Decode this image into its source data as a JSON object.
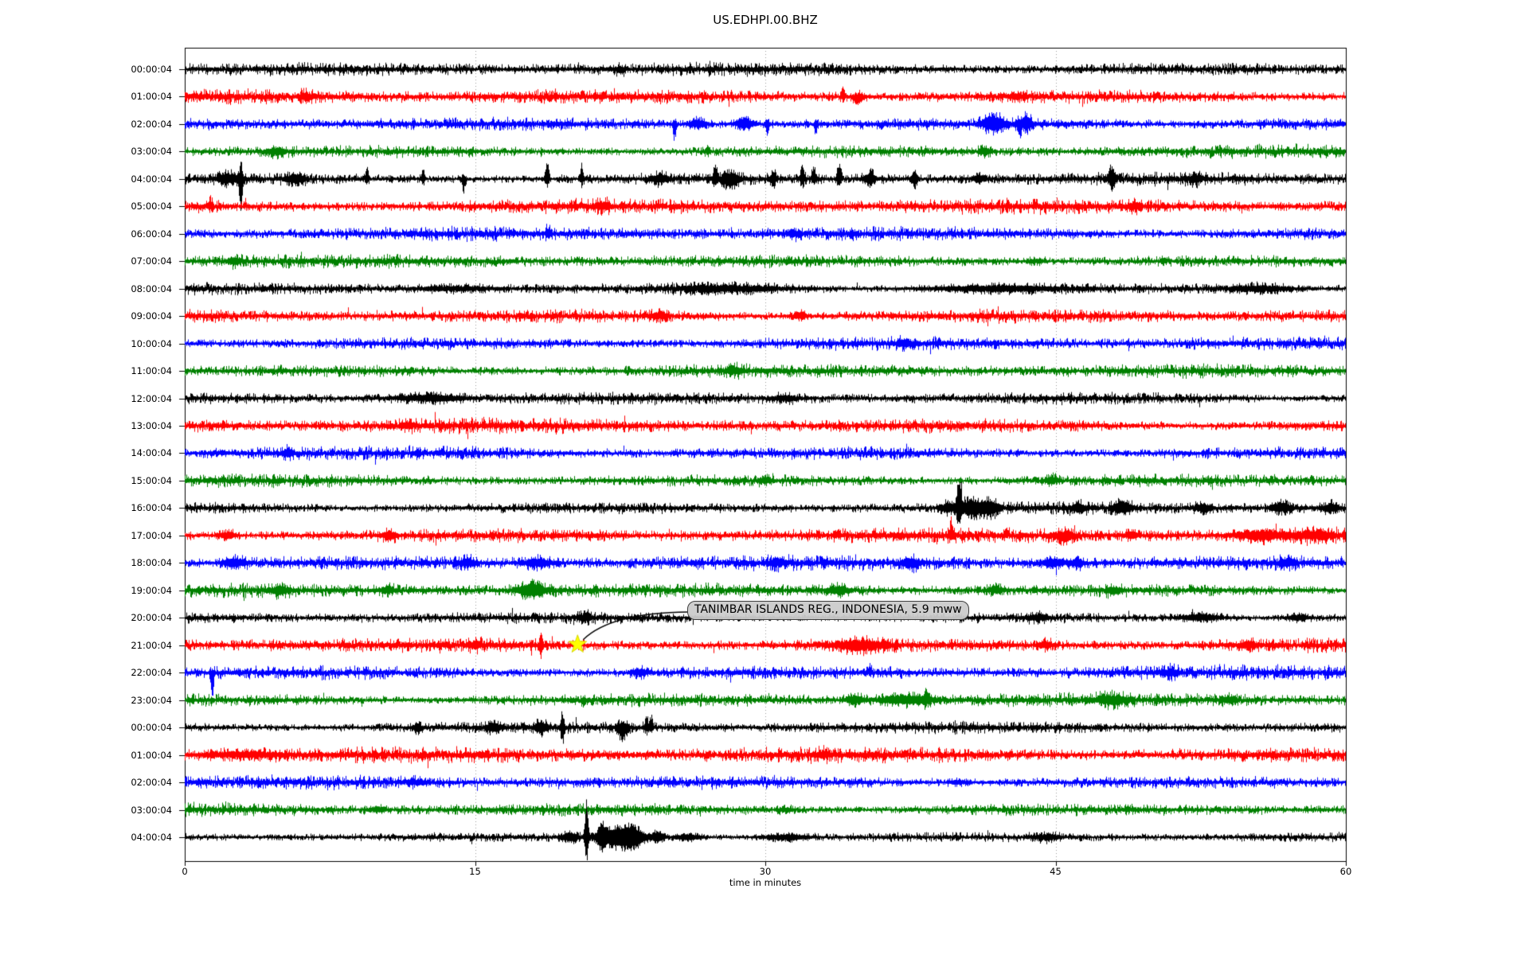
{
  "page": {
    "background": "#ffffff"
  },
  "chart_data": {
    "type": "line",
    "variant": "seismogram_day_plot",
    "title": "US.EDHPI.00.BHZ",
    "xlabel": "time in minutes",
    "xlim": [
      0,
      60
    ],
    "xticks": [
      "0",
      "15",
      "30",
      "45",
      "60"
    ],
    "grid_minutes": [
      15,
      30,
      45
    ],
    "grid_style": "dotted",
    "grid_color": "#999999",
    "axis_color": "#000000",
    "legend": "none",
    "trace_color_cycle": [
      "#000000",
      "#ff0000",
      "#0000ff",
      "#008000"
    ],
    "event_format": [
      "center_minute",
      "half_width_minutes",
      "peak_up_px",
      "peak_down_px"
    ],
    "rows": [
      {
        "label": "00:00:04",
        "color": "#000000",
        "noise": 1.05,
        "events": [
          [
            22.5,
            0.2,
            2,
            3
          ],
          [
            27.1,
            0.06,
            2,
            7
          ]
        ]
      },
      {
        "label": "01:00:04",
        "color": "#ff0000",
        "noise": 1.18,
        "events": [
          [
            6.3,
            0.25,
            3,
            3
          ],
          [
            34.0,
            0.07,
            13,
            4
          ],
          [
            34.8,
            0.22,
            3,
            7
          ],
          [
            43.0,
            0.3,
            3,
            2
          ]
        ]
      },
      {
        "label": "02:00:04",
        "color": "#0000ff",
        "noise": 1.1,
        "events": [
          [
            25.3,
            0.06,
            4,
            17
          ],
          [
            26.5,
            0.3,
            5,
            4
          ],
          [
            28.9,
            0.3,
            8,
            5
          ],
          [
            30.1,
            0.07,
            3,
            10
          ],
          [
            32.6,
            0.07,
            3,
            8
          ],
          [
            41.8,
            0.4,
            9,
            7
          ],
          [
            43.1,
            0.08,
            4,
            13
          ],
          [
            43.5,
            0.2,
            9,
            6
          ]
        ]
      },
      {
        "label": "03:00:04",
        "color": "#008000",
        "noise": 1.05,
        "events": [
          [
            4.7,
            0.3,
            4,
            4
          ],
          [
            27.0,
            0.08,
            6,
            3
          ],
          [
            41.3,
            0.2,
            4,
            3
          ]
        ]
      },
      {
        "label": "04:00:04",
        "color": "#000000",
        "noise": 1.0,
        "events": [
          [
            2.3,
            0.4,
            6,
            5
          ],
          [
            2.9,
            0.07,
            14,
            32
          ],
          [
            5.7,
            0.35,
            5,
            5
          ],
          [
            9.4,
            0.06,
            16,
            5
          ],
          [
            12.3,
            0.07,
            11,
            5
          ],
          [
            14.4,
            0.07,
            4,
            13
          ],
          [
            18.7,
            0.08,
            20,
            8
          ],
          [
            20.5,
            0.07,
            15,
            6
          ],
          [
            24.5,
            0.3,
            4,
            4
          ],
          [
            27.4,
            0.08,
            18,
            7
          ],
          [
            28.2,
            0.3,
            6,
            9
          ],
          [
            30.4,
            0.1,
            8,
            6
          ],
          [
            31.9,
            0.08,
            15,
            6
          ],
          [
            32.5,
            0.08,
            12,
            6
          ],
          [
            33.8,
            0.08,
            19,
            8
          ],
          [
            35.4,
            0.2,
            7,
            5
          ],
          [
            37.7,
            0.08,
            10,
            12
          ],
          [
            41.0,
            0.2,
            5,
            4
          ],
          [
            47.9,
            0.09,
            15,
            14
          ],
          [
            52.2,
            0.3,
            3,
            3
          ]
        ]
      },
      {
        "label": "05:00:04",
        "color": "#ff0000",
        "noise": 1.18,
        "events": [
          [
            1.3,
            0.07,
            8,
            3
          ],
          [
            21.6,
            0.25,
            4,
            3
          ],
          [
            49.0,
            0.2,
            3,
            3
          ]
        ]
      },
      {
        "label": "06:00:04",
        "color": "#0000ff",
        "noise": 1.1,
        "events": [
          [
            18.8,
            0.1,
            6,
            4
          ],
          [
            31.5,
            0.3,
            3,
            3
          ]
        ]
      },
      {
        "label": "07:00:04",
        "color": "#008000",
        "noise": 1.05,
        "events": [
          [
            2.5,
            0.25,
            3,
            3
          ],
          [
            44.0,
            0.3,
            2,
            2
          ]
        ]
      },
      {
        "label": "08:00:04",
        "color": "#000000",
        "noise": 0.9,
        "events": [
          [
            14.0,
            1.5,
            2,
            2
          ],
          [
            28.0,
            2.0,
            3,
            3
          ],
          [
            42.0,
            2.5,
            3,
            3
          ],
          [
            55.5,
            1.2,
            3,
            3
          ]
        ]
      },
      {
        "label": "09:00:04",
        "color": "#ff0000",
        "noise": 1.18,
        "events": [
          [
            24.5,
            0.3,
            4,
            3
          ],
          [
            31.8,
            0.25,
            4,
            3
          ]
        ]
      },
      {
        "label": "10:00:04",
        "color": "#0000ff",
        "noise": 1.08,
        "events": [
          [
            37.2,
            0.3,
            3,
            3
          ]
        ]
      },
      {
        "label": "11:00:04",
        "color": "#008000",
        "noise": 1.05,
        "events": [
          [
            28.3,
            0.3,
            3,
            3
          ]
        ]
      },
      {
        "label": "12:00:04",
        "color": "#000000",
        "noise": 0.95,
        "events": [
          [
            12.6,
            1.2,
            4,
            3
          ],
          [
            31.0,
            0.4,
            3,
            3
          ]
        ]
      },
      {
        "label": "13:00:04",
        "color": "#ff0000",
        "noise": 1.18,
        "events": [
          [
            11.5,
            0.25,
            3,
            3
          ]
        ]
      },
      {
        "label": "14:00:04",
        "color": "#0000ff",
        "noise": 1.08,
        "events": [
          [
            5.3,
            0.2,
            4,
            3
          ]
        ]
      },
      {
        "label": "15:00:04",
        "color": "#008000",
        "noise": 1.05,
        "events": [
          [
            30.0,
            0.3,
            2,
            2
          ],
          [
            44.8,
            0.25,
            4,
            3
          ]
        ]
      },
      {
        "label": "16:00:04",
        "color": "#000000",
        "noise": 1.0,
        "events": [
          [
            39.4,
            0.25,
            5,
            4
          ],
          [
            40.0,
            0.09,
            33,
            16
          ],
          [
            40.7,
            0.5,
            9,
            9
          ],
          [
            41.7,
            0.3,
            6,
            6
          ],
          [
            46.2,
            0.25,
            4,
            4
          ],
          [
            48.4,
            0.3,
            7,
            5
          ],
          [
            52.6,
            0.3,
            4,
            4
          ],
          [
            56.7,
            0.4,
            5,
            4
          ],
          [
            59.2,
            0.3,
            5,
            4
          ]
        ]
      },
      {
        "label": "17:00:04",
        "color": "#ff0000",
        "noise": 1.18,
        "events": [
          [
            2.2,
            0.3,
            4,
            3
          ],
          [
            10.5,
            0.25,
            4,
            3
          ],
          [
            39.6,
            0.07,
            15,
            3
          ],
          [
            45.4,
            0.4,
            4,
            6
          ],
          [
            48.9,
            0.25,
            4,
            3
          ],
          [
            55.7,
            0.9,
            5,
            4
          ],
          [
            58.4,
            0.6,
            5,
            4
          ]
        ]
      },
      {
        "label": "18:00:04",
        "color": "#0000ff",
        "noise": 1.15,
        "events": [
          [
            2.6,
            0.4,
            5,
            4
          ],
          [
            14.6,
            0.3,
            4,
            4
          ],
          [
            18.2,
            0.5,
            4,
            4
          ],
          [
            30.6,
            0.25,
            4,
            3
          ],
          [
            37.5,
            0.3,
            5,
            4
          ],
          [
            44.9,
            0.4,
            5,
            4
          ],
          [
            46.1,
            0.25,
            4,
            4
          ],
          [
            57.0,
            0.3,
            4,
            3
          ]
        ]
      },
      {
        "label": "19:00:04",
        "color": "#008000",
        "noise": 1.08,
        "events": [
          [
            4.9,
            0.3,
            4,
            4
          ],
          [
            10.5,
            0.25,
            4,
            3
          ],
          [
            17.9,
            0.5,
            8,
            7
          ],
          [
            33.8,
            0.4,
            4,
            4
          ],
          [
            41.9,
            0.3,
            4,
            3
          ],
          [
            48.0,
            0.3,
            3,
            3
          ]
        ]
      },
      {
        "label": "20:00:04",
        "color": "#000000",
        "noise": 0.9,
        "events": [
          [
            20.7,
            0.25,
            4,
            3
          ],
          [
            44.0,
            0.4,
            3,
            3
          ],
          [
            52.5,
            0.8,
            4,
            3
          ],
          [
            57.5,
            0.4,
            3,
            3
          ]
        ]
      },
      {
        "label": "21:00:04",
        "color": "#ff0000",
        "noise": 1.18,
        "events": [
          [
            15.0,
            0.25,
            4,
            3
          ],
          [
            18.4,
            0.07,
            12,
            9
          ],
          [
            34.9,
            1.0,
            5,
            5
          ],
          [
            44.5,
            0.25,
            4,
            3
          ],
          [
            55.0,
            0.3,
            3,
            3
          ]
        ]
      },
      {
        "label": "22:00:04",
        "color": "#0000ff",
        "noise": 1.15,
        "events": [
          [
            1.4,
            0.06,
            3,
            28
          ],
          [
            23.5,
            0.3,
            4,
            3
          ],
          [
            35.4,
            0.08,
            8,
            2
          ],
          [
            51.0,
            0.3,
            3,
            3
          ]
        ]
      },
      {
        "label": "23:00:04",
        "color": "#008000",
        "noise": 1.08,
        "events": [
          [
            20.6,
            0.07,
            2,
            7
          ],
          [
            34.6,
            0.3,
            5,
            4
          ],
          [
            37.3,
            1.0,
            5,
            4
          ],
          [
            38.3,
            0.1,
            7,
            3
          ],
          [
            47.9,
            0.5,
            4,
            4
          ],
          [
            54.0,
            0.3,
            3,
            3
          ]
        ]
      },
      {
        "label": "00:00:04",
        "color": "#000000",
        "noise": 0.95,
        "events": [
          [
            12.0,
            0.15,
            3,
            5
          ],
          [
            16.0,
            0.25,
            4,
            4
          ],
          [
            18.4,
            0.25,
            6,
            6
          ],
          [
            19.5,
            0.07,
            16,
            17
          ],
          [
            22.6,
            0.2,
            5,
            12
          ],
          [
            23.85,
            0.07,
            12,
            5
          ],
          [
            24.1,
            0.07,
            11,
            4
          ]
        ]
      },
      {
        "label": "01:00:04",
        "color": "#ff0000",
        "noise": 1.25,
        "events": [
          [
            3.0,
            1.5,
            3,
            2
          ],
          [
            33.0,
            0.3,
            3,
            2
          ]
        ]
      },
      {
        "label": "02:00:04",
        "color": "#0000ff",
        "noise": 1.08,
        "events": [
          [
            12.0,
            0.3,
            2,
            2
          ],
          [
            40.0,
            0.3,
            2,
            2
          ]
        ]
      },
      {
        "label": "03:00:04",
        "color": "#008000",
        "noise": 1.05,
        "events": [
          [
            10.0,
            0.25,
            3,
            2
          ],
          [
            31.0,
            0.3,
            2,
            2
          ]
        ]
      },
      {
        "label": "04:00:04",
        "color": "#000000",
        "noise": 0.8,
        "events": [
          [
            19.9,
            0.3,
            5,
            5
          ],
          [
            20.75,
            0.07,
            47,
            26
          ],
          [
            21.5,
            0.15,
            12,
            9
          ],
          [
            22.3,
            0.6,
            11,
            12
          ],
          [
            23.2,
            0.4,
            9,
            9
          ],
          [
            24.4,
            0.25,
            6,
            5
          ],
          [
            26.0,
            0.5,
            3,
            3
          ],
          [
            31.0,
            0.8,
            3,
            3
          ],
          [
            44.5,
            0.5,
            3,
            3
          ]
        ]
      }
    ],
    "annotation": {
      "text": "TANIMBAR ISLANDS REG., INDONESIA, 5.9 mww",
      "attached_row_label": "21:00:04",
      "attached_row_index": 21,
      "marker_minute": 20.3,
      "marker_shape": "star",
      "marker_color": "#ffff00",
      "marker_edge_color": "#d6d600",
      "leader_color": "#000000",
      "box_fill": "#cbcbcb",
      "box_border": "#3e3e3e",
      "text_color": "#000000"
    }
  }
}
